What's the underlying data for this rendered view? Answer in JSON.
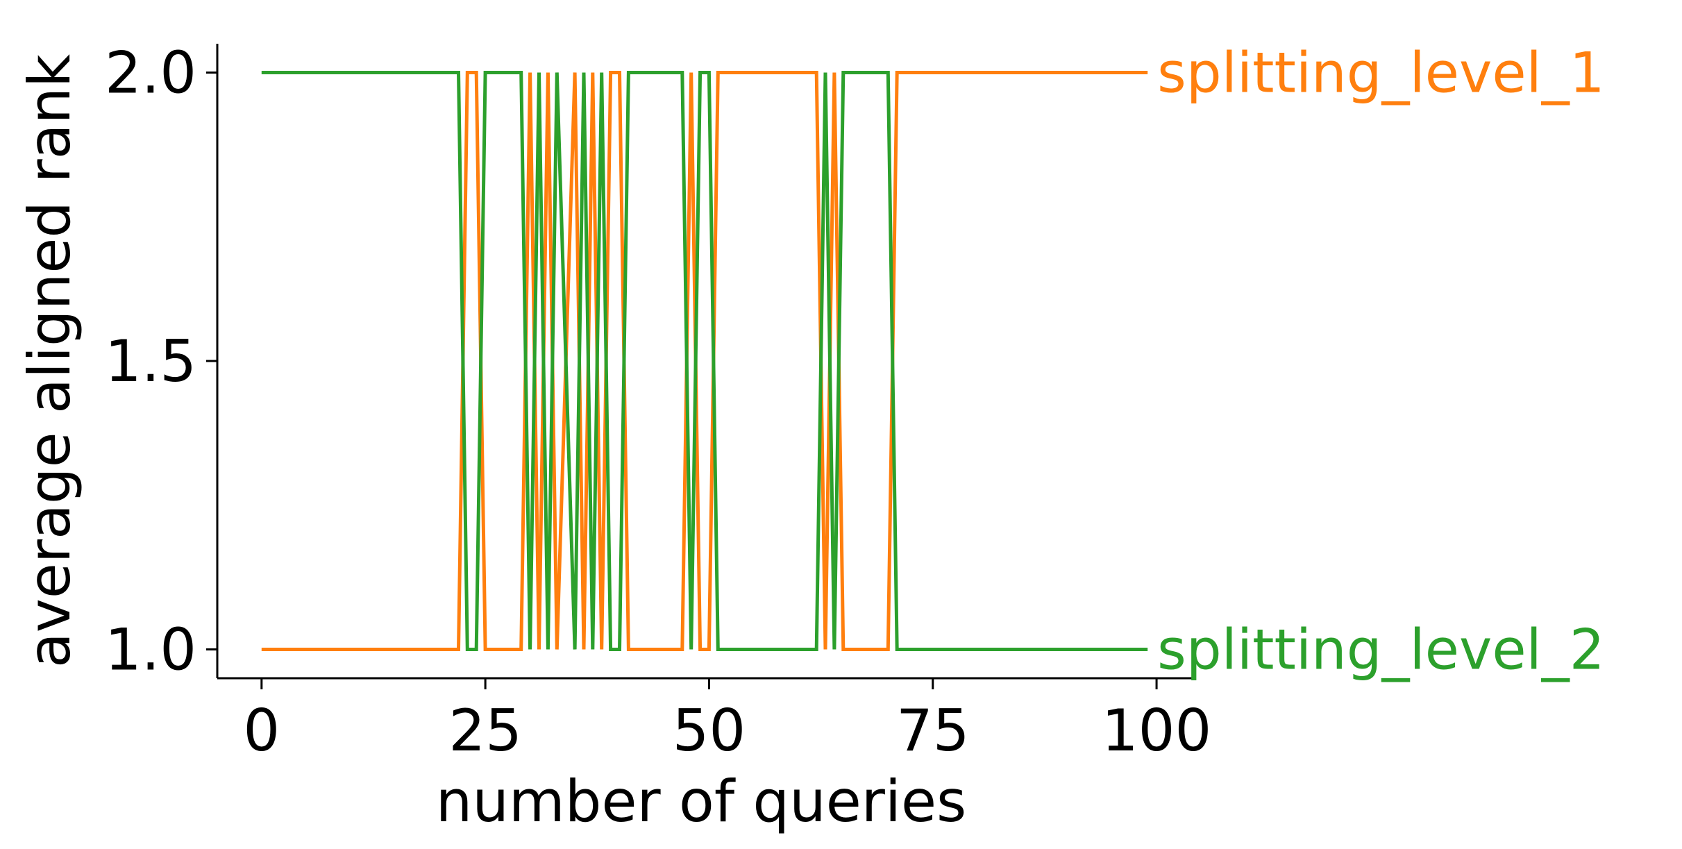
{
  "chart_data": {
    "type": "line",
    "xlabel": "number of queries",
    "ylabel": "average aligned rank",
    "xlim": [
      -4.95,
      103.95
    ],
    "ylim": [
      0.95,
      2.05
    ],
    "xticks": [
      0,
      25,
      50,
      75,
      100
    ],
    "xtick_labels": [
      "0",
      "25",
      "50",
      "75",
      "100"
    ],
    "yticks": [
      1.0,
      1.5,
      2.0
    ],
    "ytick_labels": [
      "1.0",
      "1.5",
      "2.0"
    ],
    "grid": false,
    "legend": "direct labels at right end of lines",
    "series": [
      {
        "name": "splitting_level_1",
        "color": "#ff7f0e",
        "x": [
          0,
          22,
          23,
          24,
          25,
          29,
          30,
          31,
          32,
          33,
          35,
          36,
          37,
          38,
          39,
          40,
          41,
          47,
          48,
          49,
          50,
          51,
          62,
          63,
          64,
          65,
          70,
          71,
          99
        ],
        "y": [
          1,
          1,
          2,
          2,
          1,
          1,
          2,
          1,
          2,
          1,
          2,
          1,
          2,
          1,
          2,
          2,
          1,
          1,
          2,
          1,
          1,
          2,
          2,
          1,
          2,
          1,
          1,
          2,
          2
        ]
      },
      {
        "name": "splitting_level_2",
        "color": "#2ca02c",
        "x": [
          0,
          22,
          23,
          24,
          25,
          29,
          30,
          31,
          32,
          33,
          35,
          36,
          37,
          38,
          39,
          40,
          41,
          47,
          48,
          49,
          50,
          51,
          62,
          63,
          64,
          65,
          70,
          71,
          99
        ],
        "y": [
          2,
          2,
          1,
          1,
          2,
          2,
          1,
          2,
          1,
          2,
          1,
          2,
          1,
          2,
          1,
          1,
          2,
          2,
          1,
          2,
          2,
          1,
          1,
          2,
          1,
          2,
          2,
          1,
          1
        ]
      }
    ]
  }
}
